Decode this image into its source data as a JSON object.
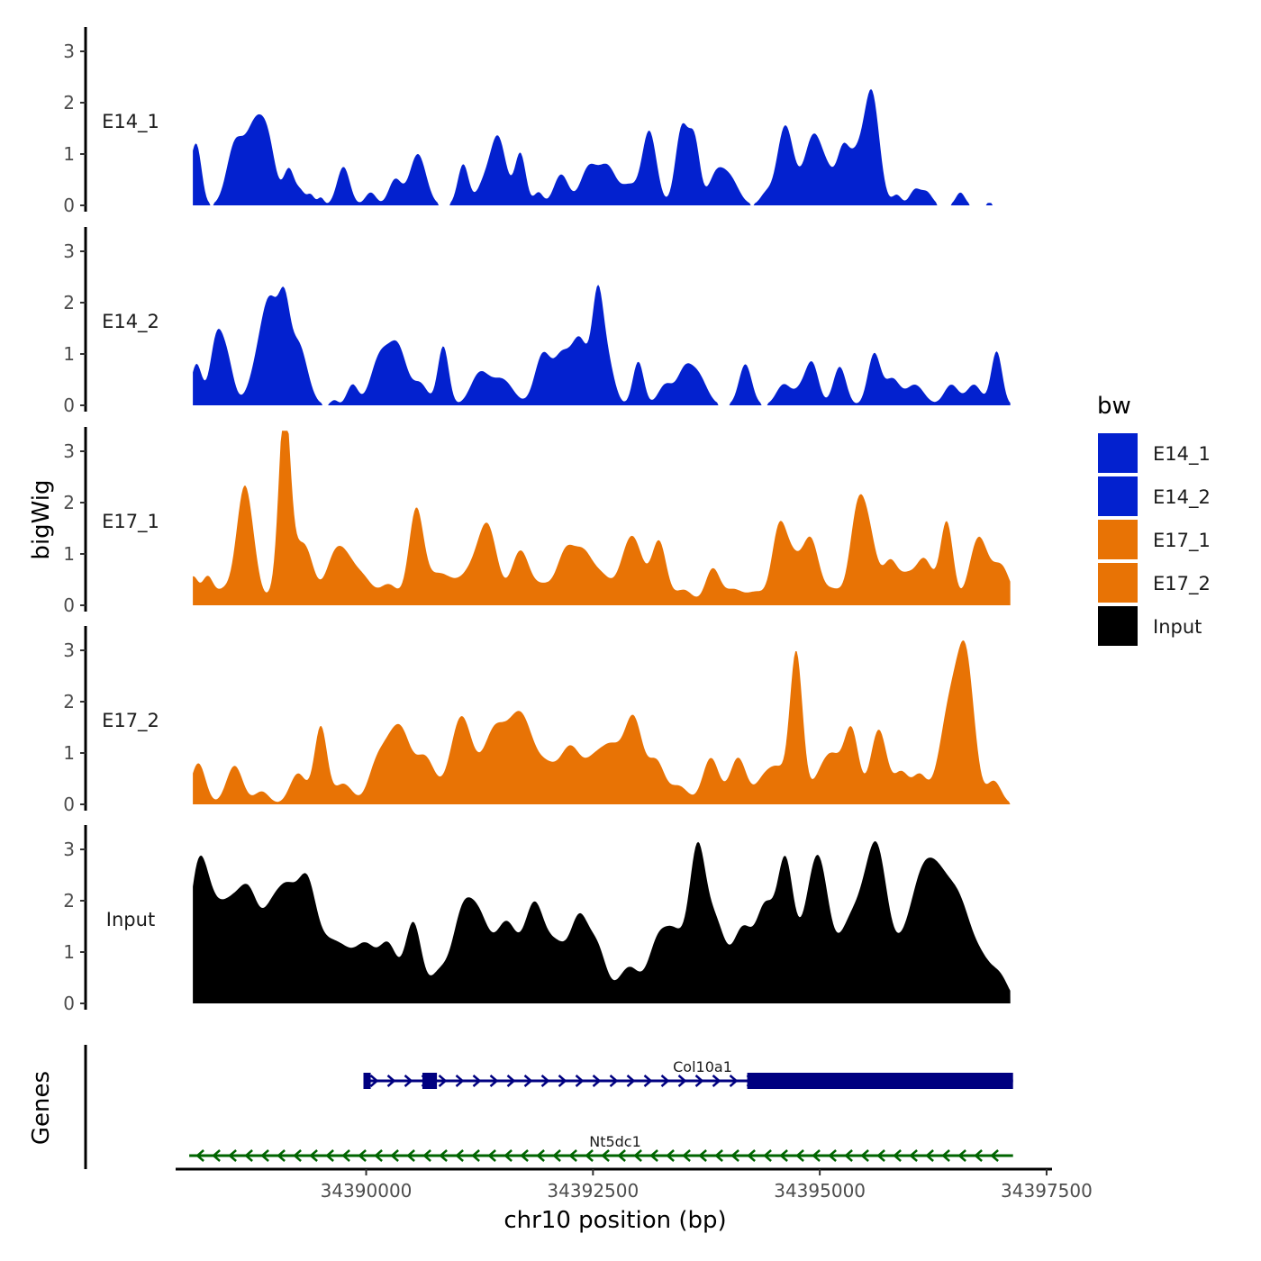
{
  "chart_data": {
    "type": "area",
    "ylabel": "bigWig",
    "xlabel": "chr10 position (bp)",
    "genes_label": "Genes",
    "xlim": [
      34387900,
      34397560
    ],
    "data_x_range": [
      34388090,
      34397100
    ],
    "ylim": [
      0,
      3.4
    ],
    "y_ticks": [
      0,
      1,
      2,
      3
    ],
    "x_ticks": [
      34390000,
      34392500,
      34395000,
      34397500
    ],
    "x_tick_labels": [
      "34390000",
      "34392500",
      "34395000",
      "34397500"
    ],
    "legend": {
      "title": "bw",
      "position": "right",
      "items": [
        {
          "label": "E14_1",
          "color": "#0321CF"
        },
        {
          "label": "E14_2",
          "color": "#0321CF"
        },
        {
          "label": "E17_1",
          "color": "#E87305"
        },
        {
          "label": "E17_2",
          "color": "#E87305"
        },
        {
          "label": "Input",
          "color": "#000000"
        }
      ]
    },
    "series": [
      {
        "name": "E14_1",
        "color": "#0321CF",
        "peaks": [
          [
            34388090,
            0.75,
            60
          ],
          [
            34388150,
            0.65,
            50
          ],
          [
            34388550,
            1.1,
            90
          ],
          [
            34388780,
            1.55,
            110
          ],
          [
            34388930,
            0.8,
            80
          ],
          [
            34389150,
            0.7,
            60
          ],
          [
            34389280,
            0.25,
            50
          ],
          [
            34389390,
            0.2,
            40
          ],
          [
            34389500,
            0.15,
            35
          ],
          [
            34389750,
            0.75,
            70
          ],
          [
            34390050,
            0.25,
            60
          ],
          [
            34390320,
            0.5,
            70
          ],
          [
            34390570,
            1.0,
            90
          ],
          [
            34391070,
            0.8,
            60
          ],
          [
            34391280,
            0.3,
            70
          ],
          [
            34391450,
            1.35,
            90
          ],
          [
            34391700,
            1.0,
            60
          ],
          [
            34391900,
            0.25,
            50
          ],
          [
            34392150,
            0.6,
            80
          ],
          [
            34392450,
            0.7,
            90
          ],
          [
            34392660,
            0.75,
            100
          ],
          [
            34392900,
            0.35,
            80
          ],
          [
            34393120,
            1.45,
            80
          ],
          [
            34393480,
            1.5,
            70
          ],
          [
            34393620,
            1.2,
            60
          ],
          [
            34393850,
            0.5,
            80
          ],
          [
            34394000,
            0.55,
            100
          ],
          [
            34394400,
            0.2,
            60
          ],
          [
            34394620,
            1.55,
            90
          ],
          [
            34394930,
            1.35,
            100
          ],
          [
            34395100,
            0.4,
            80
          ],
          [
            34395250,
            0.6,
            60
          ],
          [
            34395400,
            1.0,
            130
          ],
          [
            34395580,
            1.85,
            80
          ],
          [
            34395850,
            0.2,
            50
          ],
          [
            34396050,
            0.3,
            60
          ],
          [
            34396180,
            0.25,
            60
          ],
          [
            34396550,
            0.25,
            50
          ],
          [
            34396870,
            0.05,
            40
          ]
        ]
      },
      {
        "name": "E14_2",
        "color": "#0321CF",
        "peaks": [
          [
            34388130,
            0.8,
            60
          ],
          [
            34388350,
            1.25,
            70
          ],
          [
            34388470,
            0.8,
            70
          ],
          [
            34388880,
            1.3,
            120
          ],
          [
            34388970,
            1.0,
            90
          ],
          [
            34389100,
            1.3,
            60
          ],
          [
            34389250,
            1.2,
            100
          ],
          [
            34389650,
            0.1,
            40
          ],
          [
            34389850,
            0.4,
            60
          ],
          [
            34390150,
            0.9,
            100
          ],
          [
            34390350,
            1.1,
            100
          ],
          [
            34390600,
            0.4,
            80
          ],
          [
            34390850,
            1.15,
            60
          ],
          [
            34391250,
            0.6,
            100
          ],
          [
            34391500,
            0.5,
            120
          ],
          [
            34391950,
            1.0,
            90
          ],
          [
            34392150,
            0.8,
            80
          ],
          [
            34392350,
            1.3,
            100
          ],
          [
            34392550,
            1.75,
            60
          ],
          [
            34392650,
            0.9,
            80
          ],
          [
            34393000,
            0.85,
            60
          ],
          [
            34393300,
            0.4,
            80
          ],
          [
            34393500,
            0.55,
            80
          ],
          [
            34393650,
            0.6,
            100
          ],
          [
            34394180,
            0.8,
            70
          ],
          [
            34394600,
            0.4,
            80
          ],
          [
            34394800,
            0.3,
            80
          ],
          [
            34394920,
            0.75,
            70
          ],
          [
            34395220,
            0.75,
            70
          ],
          [
            34395600,
            1.0,
            70
          ],
          [
            34395800,
            0.5,
            80
          ],
          [
            34396050,
            0.4,
            100
          ],
          [
            34396450,
            0.4,
            80
          ],
          [
            34396700,
            0.4,
            80
          ],
          [
            34396950,
            1.05,
            60
          ]
        ]
      },
      {
        "name": "E17_1",
        "color": "#E87305",
        "peaks": [
          [
            34388090,
            0.55,
            60
          ],
          [
            34388250,
            0.5,
            60
          ],
          [
            34388430,
            0.3,
            100
          ],
          [
            34388640,
            1.75,
            80
          ],
          [
            34388730,
            0.9,
            80
          ],
          [
            34389100,
            3.25,
            60
          ],
          [
            34389200,
            1.0,
            150
          ],
          [
            34389350,
            0.5,
            80
          ],
          [
            34389650,
            0.85,
            100
          ],
          [
            34389800,
            0.65,
            100
          ],
          [
            34389980,
            0.45,
            100
          ],
          [
            34390250,
            0.4,
            100
          ],
          [
            34390550,
            1.75,
            80
          ],
          [
            34390800,
            0.6,
            150
          ],
          [
            34391200,
            0.7,
            150
          ],
          [
            34391350,
            1.15,
            100
          ],
          [
            34391700,
            1.05,
            100
          ],
          [
            34391950,
            0.35,
            100
          ],
          [
            34392200,
            1.0,
            100
          ],
          [
            34392400,
            0.9,
            100
          ],
          [
            34392600,
            0.5,
            100
          ],
          [
            34392930,
            1.35,
            120
          ],
          [
            34393230,
            1.2,
            80
          ],
          [
            34393500,
            0.3,
            100
          ],
          [
            34393820,
            0.7,
            80
          ],
          [
            34394050,
            0.3,
            100
          ],
          [
            34394300,
            0.25,
            100
          ],
          [
            34394550,
            1.4,
            80
          ],
          [
            34394700,
            0.8,
            90
          ],
          [
            34394900,
            1.25,
            90
          ],
          [
            34395150,
            0.3,
            100
          ],
          [
            34395400,
            1.2,
            80
          ],
          [
            34395520,
            1.5,
            100
          ],
          [
            34395780,
            0.8,
            80
          ],
          [
            34395950,
            0.45,
            80
          ],
          [
            34396150,
            0.9,
            100
          ],
          [
            34396400,
            1.6,
            70
          ],
          [
            34396750,
            1.3,
            100
          ],
          [
            34397000,
            0.75,
            100
          ]
        ]
      },
      {
        "name": "E17_2",
        "color": "#E87305",
        "peaks": [
          [
            34388150,
            0.8,
            80
          ],
          [
            34388550,
            0.75,
            90
          ],
          [
            34388850,
            0.25,
            80
          ],
          [
            34389250,
            0.6,
            90
          ],
          [
            34389500,
            1.5,
            70
          ],
          [
            34389750,
            0.4,
            100
          ],
          [
            34390100,
            0.6,
            90
          ],
          [
            34390250,
            0.85,
            100
          ],
          [
            34390400,
            1.15,
            100
          ],
          [
            34390650,
            0.9,
            110
          ],
          [
            34391050,
            1.7,
            120
          ],
          [
            34391400,
            1.25,
            120
          ],
          [
            34391700,
            1.75,
            150
          ],
          [
            34392000,
            0.5,
            100
          ],
          [
            34392250,
            1.1,
            120
          ],
          [
            34392500,
            0.6,
            100
          ],
          [
            34392700,
            1.05,
            120
          ],
          [
            34392950,
            1.6,
            100
          ],
          [
            34393200,
            0.8,
            90
          ],
          [
            34393450,
            0.35,
            100
          ],
          [
            34393800,
            0.9,
            90
          ],
          [
            34394100,
            0.9,
            90
          ],
          [
            34394400,
            0.55,
            100
          ],
          [
            34394550,
            0.5,
            80
          ],
          [
            34394740,
            2.95,
            70
          ],
          [
            34395000,
            0.45,
            100
          ],
          [
            34395150,
            0.8,
            100
          ],
          [
            34395350,
            1.4,
            80
          ],
          [
            34395650,
            1.45,
            90
          ],
          [
            34395900,
            0.6,
            80
          ],
          [
            34396100,
            0.55,
            80
          ],
          [
            34396450,
            2.0,
            120
          ],
          [
            34396620,
            2.3,
            90
          ],
          [
            34396920,
            0.45,
            80
          ]
        ]
      },
      {
        "name": "Input",
        "color": "#000000",
        "peaks": [
          [
            34388150,
            2.5,
            110
          ],
          [
            34388350,
            1.25,
            120
          ],
          [
            34388550,
            1.5,
            120
          ],
          [
            34388720,
            1.45,
            100
          ],
          [
            34388950,
            1.6,
            120
          ],
          [
            34389150,
            1.7,
            110
          ],
          [
            34389350,
            1.95,
            100
          ],
          [
            34389550,
            0.9,
            120
          ],
          [
            34389750,
            0.8,
            120
          ],
          [
            34390000,
            1.05,
            120
          ],
          [
            34390250,
            1.05,
            100
          ],
          [
            34390520,
            1.55,
            90
          ],
          [
            34390800,
            0.55,
            100
          ],
          [
            34391050,
            1.5,
            110
          ],
          [
            34391250,
            1.5,
            120
          ],
          [
            34391550,
            1.5,
            120
          ],
          [
            34391850,
            1.8,
            110
          ],
          [
            34392100,
            1.05,
            120
          ],
          [
            34392350,
            1.5,
            100
          ],
          [
            34392550,
            1.0,
            100
          ],
          [
            34392900,
            0.7,
            120
          ],
          [
            34393200,
            0.95,
            100
          ],
          [
            34393400,
            1.3,
            120
          ],
          [
            34393650,
            2.7,
            90
          ],
          [
            34393850,
            1.5,
            110
          ],
          [
            34394150,
            1.4,
            110
          ],
          [
            34394400,
            1.75,
            100
          ],
          [
            34394620,
            2.6,
            90
          ],
          [
            34394850,
            1.0,
            110
          ],
          [
            34395000,
            2.4,
            110
          ],
          [
            34395300,
            1.2,
            120
          ],
          [
            34395500,
            1.4,
            120
          ],
          [
            34395650,
            2.3,
            110
          ],
          [
            34395900,
            0.8,
            120
          ],
          [
            34396100,
            1.6,
            120
          ],
          [
            34396300,
            2.1,
            140
          ],
          [
            34396550,
            1.6,
            130
          ],
          [
            34396800,
            0.7,
            120
          ],
          [
            34397000,
            0.4,
            90
          ]
        ]
      }
    ],
    "genes": [
      {
        "name": "Col10a1",
        "strand": "+",
        "color": "#000080",
        "start": 34389970,
        "end": 34397130,
        "exons": [
          [
            34389970,
            34390050
          ],
          [
            34390620,
            34390780
          ],
          [
            34394200,
            34397130
          ]
        ]
      },
      {
        "name": "Nt5dc1",
        "strand": "-",
        "color": "#006400",
        "start": 34388050,
        "end": 34397130,
        "exons": []
      }
    ]
  }
}
